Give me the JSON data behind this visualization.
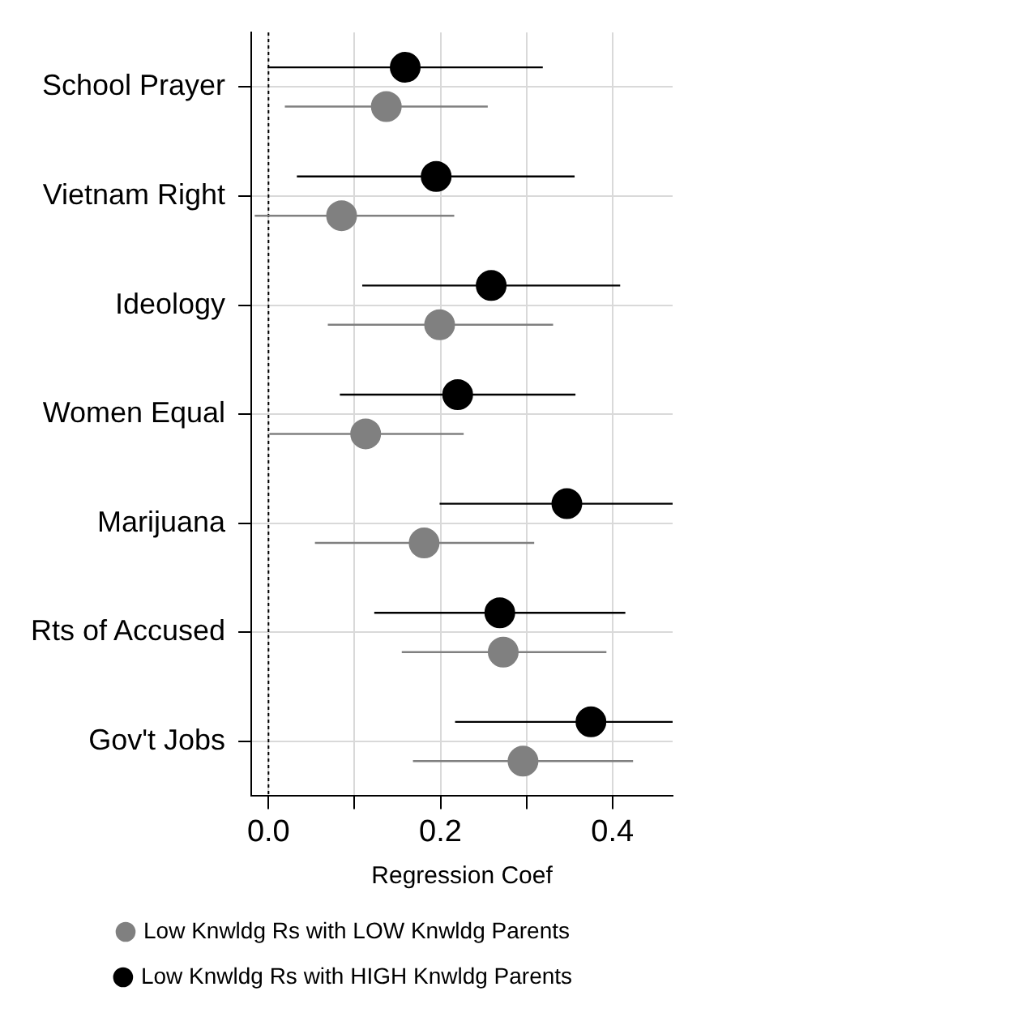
{
  "chart_data": {
    "type": "scatter",
    "orientation": "horizontal",
    "xlabel": "Regression Coef",
    "categories": [
      "School Prayer",
      "Vietnam Right",
      "Ideology",
      "Women Equal",
      "Marijuana",
      "Rts of Accused",
      "Gov't Jobs"
    ],
    "xlim": [
      -0.02,
      0.47
    ],
    "xticks": [
      {
        "value": 0,
        "label": "0.0"
      },
      {
        "value": 0.1,
        "label": null
      },
      {
        "value": 0.2,
        "label": "0.2"
      },
      {
        "value": 0.3,
        "label": null
      },
      {
        "value": 0.4,
        "label": "0.4"
      }
    ],
    "grid": true,
    "legend": "bottom",
    "marker": "circle",
    "ref_lines": [
      {
        "axis": "x",
        "value": 0,
        "line_style": "dotted",
        "color": "#000000"
      }
    ],
    "series": [
      {
        "name": "Low Knwldg Rs with LOW Knwldg Parents",
        "color": "#808080",
        "values": [
          0.137,
          0.085,
          0.199,
          0.113,
          0.181,
          0.273,
          0.296
        ],
        "errors": [
          [
            0.019,
            0.255
          ],
          [
            -0.016,
            0.216
          ],
          [
            0.069,
            0.331
          ],
          [
            0.001,
            0.227
          ],
          [
            0.054,
            0.309
          ],
          [
            0.155,
            0.393
          ],
          [
            0.168,
            0.424
          ]
        ]
      },
      {
        "name": "Low Knwldg Rs with HIGH Knwldg Parents",
        "color": "#000000",
        "values": [
          0.159,
          0.195,
          0.259,
          0.22,
          0.347,
          0.269,
          0.375
        ],
        "errors": [
          [
            -0.001,
            0.319
          ],
          [
            0.033,
            0.356
          ],
          [
            0.109,
            0.409
          ],
          [
            0.083,
            0.357
          ],
          [
            0.199,
            0.47
          ],
          [
            0.123,
            0.415
          ],
          [
            0.217,
            0.47
          ]
        ]
      }
    ]
  }
}
